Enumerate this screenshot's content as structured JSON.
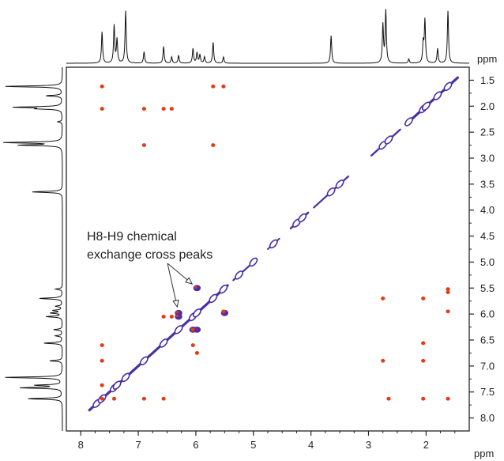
{
  "chart_data": {
    "type": "scatter",
    "subtype": "2D NMR contour spectrum (homonuclear, with 1D projections on top and left)",
    "title": "",
    "xlabel": "ppm",
    "ylabel": "ppm",
    "x_reversed": true,
    "y_reversed": false,
    "xlim": [
      8.25,
      1.25
    ],
    "ylim": [
      1.25,
      8.25
    ],
    "x_ticks": [
      8,
      7,
      6,
      5,
      4,
      3,
      2
    ],
    "y_ticks": [
      1.5,
      2.0,
      2.5,
      3.0,
      3.5,
      4.0,
      4.5,
      5.0,
      5.5,
      6.0,
      6.5,
      7.0,
      7.5,
      8.0
    ],
    "grid": false,
    "colors": {
      "positive": "#4b2fa6",
      "negative": "#e63a16",
      "axis": "#222222"
    },
    "annotation": {
      "lines": [
        "H8-H9 chemical",
        "exchange cross peaks"
      ],
      "targets": [
        [
          6.3,
          5.98
        ],
        [
          5.98,
          5.5
        ]
      ]
    },
    "diagonal_peaks": [
      {
        "x": 7.72,
        "y": 7.72
      },
      {
        "x": 7.63,
        "y": 7.63
      },
      {
        "x": 7.42,
        "y": 7.42
      },
      {
        "x": 7.37,
        "y": 7.37
      },
      {
        "x": 7.22,
        "y": 7.22
      },
      {
        "x": 6.9,
        "y": 6.9
      },
      {
        "x": 6.56,
        "y": 6.56
      },
      {
        "x": 6.3,
        "y": 6.3
      },
      {
        "x": 6.05,
        "y": 6.05
      },
      {
        "x": 5.98,
        "y": 5.98
      },
      {
        "x": 5.7,
        "y": 5.7
      },
      {
        "x": 5.52,
        "y": 5.52
      },
      {
        "x": 5.25,
        "y": 5.25
      },
      {
        "x": 5.0,
        "y": 5.0
      },
      {
        "x": 4.65,
        "y": 4.65
      },
      {
        "x": 4.25,
        "y": 4.25
      },
      {
        "x": 4.15,
        "y": 4.15
      },
      {
        "x": 3.65,
        "y": 3.65
      },
      {
        "x": 3.5,
        "y": 3.5
      },
      {
        "x": 2.75,
        "y": 2.75
      },
      {
        "x": 2.65,
        "y": 2.65
      },
      {
        "x": 2.3,
        "y": 2.3
      },
      {
        "x": 2.05,
        "y": 2.05
      },
      {
        "x": 2.0,
        "y": 2.0
      },
      {
        "x": 1.8,
        "y": 1.8
      },
      {
        "x": 1.62,
        "y": 1.62
      }
    ],
    "exchange_peaks": [
      {
        "x": 6.3,
        "y": 5.98
      },
      {
        "x": 5.98,
        "y": 6.3
      },
      {
        "x": 5.98,
        "y": 5.5
      },
      {
        "x": 5.5,
        "y": 5.98
      },
      {
        "x": 6.05,
        "y": 6.3
      },
      {
        "x": 6.3,
        "y": 6.05
      }
    ],
    "cross_peaks": [
      {
        "x": 7.63,
        "y": 1.62
      },
      {
        "x": 7.63,
        "y": 2.05
      },
      {
        "x": 6.9,
        "y": 2.05
      },
      {
        "x": 6.56,
        "y": 2.05
      },
      {
        "x": 6.42,
        "y": 2.05
      },
      {
        "x": 6.9,
        "y": 2.75
      },
      {
        "x": 5.7,
        "y": 1.62
      },
      {
        "x": 5.52,
        "y": 1.62
      },
      {
        "x": 5.7,
        "y": 2.75
      },
      {
        "x": 1.62,
        "y": 5.52
      },
      {
        "x": 1.62,
        "y": 5.58
      },
      {
        "x": 1.62,
        "y": 5.95
      },
      {
        "x": 2.75,
        "y": 5.7
      },
      {
        "x": 2.05,
        "y": 5.7
      },
      {
        "x": 2.05,
        "y": 6.56
      },
      {
        "x": 2.05,
        "y": 6.9
      },
      {
        "x": 2.75,
        "y": 6.9
      },
      {
        "x": 2.05,
        "y": 7.63
      },
      {
        "x": 1.62,
        "y": 7.63
      },
      {
        "x": 2.65,
        "y": 7.63
      },
      {
        "x": 7.63,
        "y": 6.6
      },
      {
        "x": 7.63,
        "y": 6.9
      },
      {
        "x": 7.63,
        "y": 7.37
      },
      {
        "x": 7.63,
        "y": 7.63
      },
      {
        "x": 7.42,
        "y": 7.63
      },
      {
        "x": 6.9,
        "y": 7.63
      },
      {
        "x": 6.56,
        "y": 7.63
      },
      {
        "x": 6.56,
        "y": 6.05
      },
      {
        "x": 6.05,
        "y": 6.3
      },
      {
        "x": 6.05,
        "y": 6.6
      },
      {
        "x": 5.98,
        "y": 6.75
      },
      {
        "x": 5.52,
        "y": 5.95
      },
      {
        "x": 6.42,
        "y": 6.05
      }
    ],
    "projection_peaks": [
      {
        "ppm": 7.63,
        "height": 0.6
      },
      {
        "ppm": 7.42,
        "height": 0.72
      },
      {
        "ppm": 7.37,
        "height": 0.45
      },
      {
        "ppm": 7.22,
        "height": 1.0
      },
      {
        "ppm": 6.9,
        "height": 0.22
      },
      {
        "ppm": 6.56,
        "height": 0.32
      },
      {
        "ppm": 6.42,
        "height": 0.12
      },
      {
        "ppm": 6.3,
        "height": 0.15
      },
      {
        "ppm": 6.05,
        "height": 0.28
      },
      {
        "ppm": 5.98,
        "height": 0.2
      },
      {
        "ppm": 5.93,
        "height": 0.16
      },
      {
        "ppm": 5.85,
        "height": 0.12
      },
      {
        "ppm": 5.7,
        "height": 0.4
      },
      {
        "ppm": 5.52,
        "height": 0.12
      },
      {
        "ppm": 3.65,
        "height": 0.53
      },
      {
        "ppm": 2.75,
        "height": 0.73
      },
      {
        "ppm": 2.7,
        "height": 1.0
      },
      {
        "ppm": 2.3,
        "height": 0.08
      },
      {
        "ppm": 2.05,
        "height": 0.38
      },
      {
        "ppm": 2.02,
        "height": 0.82
      },
      {
        "ppm": 1.8,
        "height": 0.28
      },
      {
        "ppm": 1.62,
        "height": 1.0
      }
    ]
  }
}
